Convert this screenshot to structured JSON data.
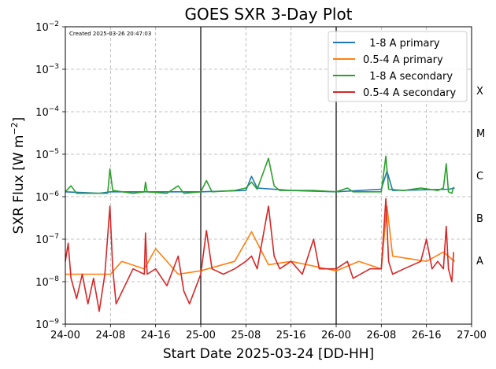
{
  "chart_data": {
    "type": "line",
    "title": "GOES SXR 3-Day Plot",
    "created_text": "Created 2025-03-26 20:47:03",
    "xlabel": "Start Date 2025-03-24 [DD-HH]",
    "ylabel": "SXR Flux [W m⁻²]",
    "ylabel_main": "SXR Flux [W m",
    "ylabel_exp": "−2",
    "ylabel_end": "]",
    "yscale": "log",
    "ylim": [
      1e-09,
      0.01
    ],
    "xlim_hours": [
      0,
      72
    ],
    "x_ticks": [
      "24-00",
      "24-08",
      "24-16",
      "25-00",
      "25-08",
      "25-16",
      "26-00",
      "26-08",
      "26-16",
      "27-00"
    ],
    "y_ticks": [
      {
        "base": "10",
        "exp": "−9"
      },
      {
        "base": "10",
        "exp": "−8"
      },
      {
        "base": "10",
        "exp": "−7"
      },
      {
        "base": "10",
        "exp": "−6"
      },
      {
        "base": "10",
        "exp": "−5"
      },
      {
        "base": "10",
        "exp": "−4"
      },
      {
        "base": "10",
        "exp": "−3"
      },
      {
        "base": "10",
        "exp": "−2"
      }
    ],
    "grid": true,
    "day_boundaries_hours": [
      24,
      48
    ],
    "flare_classes": [
      "A",
      "B",
      "C",
      "M",
      "X"
    ],
    "legend_position": "top-right",
    "series": [
      {
        "name": "  1-8 A primary",
        "color": "#1f77b4",
        "points": [
          [
            0,
            1.3e-06
          ],
          [
            6,
            1.2e-06
          ],
          [
            8,
            1.3e-06
          ],
          [
            16,
            1.3e-06
          ],
          [
            24,
            1.3e-06
          ],
          [
            32,
            1.4e-06
          ],
          [
            33,
            3e-06
          ],
          [
            34,
            1.6e-06
          ],
          [
            40,
            1.4e-06
          ],
          [
            48,
            1.3e-06
          ],
          [
            56,
            1.5e-06
          ],
          [
            57,
            4e-06
          ],
          [
            58,
            1.4e-06
          ],
          [
            68,
            1.5e-06
          ],
          [
            69,
            1.6e-06
          ]
        ]
      },
      {
        "name": "0.5-4 A primary",
        "color": "#ff7f0e",
        "points": [
          [
            0,
            1.5e-08
          ],
          [
            8,
            1.5e-08
          ],
          [
            10,
            3e-08
          ],
          [
            14,
            2e-08
          ],
          [
            16,
            6e-08
          ],
          [
            20,
            1.5e-08
          ],
          [
            24,
            1.8e-08
          ],
          [
            30,
            3e-08
          ],
          [
            33,
            1.5e-07
          ],
          [
            36,
            2.5e-08
          ],
          [
            40,
            3e-08
          ],
          [
            48,
            1.8e-08
          ],
          [
            52,
            3e-08
          ],
          [
            56,
            2e-08
          ],
          [
            57,
            6e-07
          ],
          [
            58,
            4e-08
          ],
          [
            64,
            3e-08
          ],
          [
            67,
            5e-08
          ],
          [
            69,
            3e-08
          ]
        ]
      },
      {
        "name": "  1-8 A secondary",
        "color": "#2ca02c",
        "points": [
          [
            0,
            1.3e-06
          ],
          [
            1,
            1.8e-06
          ],
          [
            2,
            1.2e-06
          ],
          [
            7.5,
            1.2e-06
          ],
          [
            7.9,
            4.5e-06
          ],
          [
            8.4,
            1.4e-06
          ],
          [
            12,
            1.2e-06
          ],
          [
            14,
            1.3e-06
          ],
          [
            14.2,
            2.2e-06
          ],
          [
            14.5,
            1.3e-06
          ],
          [
            18,
            1.2e-06
          ],
          [
            20,
            1.8e-06
          ],
          [
            21,
            1.2e-06
          ],
          [
            24,
            1.3e-06
          ],
          [
            25,
            2.4e-06
          ],
          [
            26,
            1.3e-06
          ],
          [
            30,
            1.4e-06
          ],
          [
            32,
            1.6e-06
          ],
          [
            33,
            2.2e-06
          ],
          [
            34,
            1.5e-06
          ],
          [
            36,
            8e-06
          ],
          [
            37,
            1.8e-06
          ],
          [
            38,
            1.4e-06
          ],
          [
            44,
            1.4e-06
          ],
          [
            48,
            1.3e-06
          ],
          [
            50,
            1.6e-06
          ],
          [
            51,
            1.3e-06
          ],
          [
            54,
            1.3e-06
          ],
          [
            56,
            1.3e-06
          ],
          [
            56.8,
            9e-06
          ],
          [
            57.3,
            1.5e-06
          ],
          [
            60,
            1.4e-06
          ],
          [
            63,
            1.6e-06
          ],
          [
            66,
            1.4e-06
          ],
          [
            67,
            1.6e-06
          ],
          [
            67.5,
            6e-06
          ],
          [
            67.9,
            1.3e-06
          ],
          [
            68.5,
            1.2e-06
          ],
          [
            68.8,
            1.7e-06
          ]
        ]
      },
      {
        "name": "0.5-4 A secondary",
        "color": "#d62728",
        "points": [
          [
            0,
            3e-08
          ],
          [
            0.5,
            8e-08
          ],
          [
            1,
            1.2e-08
          ],
          [
            2,
            4e-09
          ],
          [
            3,
            1.5e-08
          ],
          [
            4,
            3e-09
          ],
          [
            5,
            1.2e-08
          ],
          [
            6,
            2e-09
          ],
          [
            7,
            1.5e-08
          ],
          [
            7.9,
            6e-07
          ],
          [
            8.4,
            2e-08
          ],
          [
            9,
            3e-09
          ],
          [
            12,
            2e-08
          ],
          [
            14,
            1.5e-08
          ],
          [
            14.2,
            1.4e-07
          ],
          [
            14.5,
            1.5e-08
          ],
          [
            16,
            2e-08
          ],
          [
            18,
            8e-09
          ],
          [
            20,
            4e-08
          ],
          [
            21,
            6e-09
          ],
          [
            22,
            3e-09
          ],
          [
            24,
            1.5e-08
          ],
          [
            25,
            1.6e-07
          ],
          [
            26,
            2e-08
          ],
          [
            28,
            1.5e-08
          ],
          [
            30,
            2e-08
          ],
          [
            32,
            3e-08
          ],
          [
            33,
            4e-08
          ],
          [
            34,
            2e-08
          ],
          [
            36,
            6e-07
          ],
          [
            37,
            4e-08
          ],
          [
            38,
            2e-08
          ],
          [
            40,
            3e-08
          ],
          [
            42,
            1.5e-08
          ],
          [
            44,
            1e-07
          ],
          [
            45,
            2e-08
          ],
          [
            48,
            2e-08
          ],
          [
            50,
            3e-08
          ],
          [
            51,
            1.2e-08
          ],
          [
            54,
            2e-08
          ],
          [
            56,
            2e-08
          ],
          [
            56.8,
            9e-07
          ],
          [
            57.3,
            3e-08
          ],
          [
            58,
            1.5e-08
          ],
          [
            60,
            2e-08
          ],
          [
            63,
            3e-08
          ],
          [
            64,
            1e-07
          ],
          [
            65,
            2e-08
          ],
          [
            66,
            3e-08
          ],
          [
            67,
            2e-08
          ],
          [
            67.5,
            2e-07
          ],
          [
            67.9,
            2e-08
          ],
          [
            68.5,
            1e-08
          ],
          [
            68.8,
            5e-08
          ]
        ]
      }
    ]
  }
}
